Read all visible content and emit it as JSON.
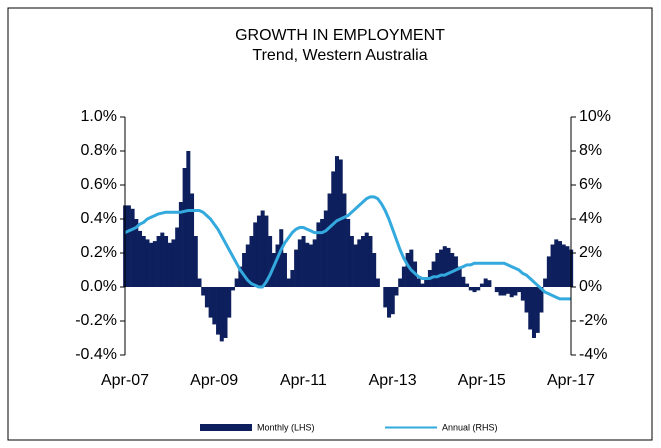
{
  "chart_data": {
    "type": "bar-line",
    "title": "GROWTH IN EMPLOYMENT",
    "subtitle": "Trend, Western Australia",
    "categories": [
      "Apr-07",
      null,
      null,
      null,
      null,
      null,
      null,
      null,
      null,
      null,
      null,
      null,
      null,
      null,
      null,
      null,
      null,
      null,
      null,
      null,
      null,
      null,
      null,
      null,
      "Apr-09",
      null,
      null,
      null,
      null,
      null,
      null,
      null,
      null,
      null,
      null,
      null,
      null,
      null,
      null,
      null,
      null,
      null,
      null,
      null,
      null,
      null,
      null,
      null,
      "Apr-11",
      null,
      null,
      null,
      null,
      null,
      null,
      null,
      null,
      null,
      null,
      null,
      null,
      null,
      null,
      null,
      null,
      null,
      null,
      null,
      null,
      null,
      null,
      null,
      "Apr-13",
      null,
      null,
      null,
      null,
      null,
      null,
      null,
      null,
      null,
      null,
      null,
      null,
      null,
      null,
      null,
      null,
      null,
      null,
      null,
      null,
      null,
      null,
      null,
      "Apr-15",
      null,
      null,
      null,
      null,
      null,
      null,
      null,
      null,
      null,
      null,
      null,
      null,
      null,
      null,
      null,
      null,
      null,
      null,
      null,
      null,
      null,
      null,
      null,
      "Apr-17"
    ],
    "series": [
      {
        "name": "Monthly (LHS)",
        "type": "bar",
        "color": "#0d1f5c",
        "axis": "y",
        "values": [
          0.48,
          0.48,
          0.46,
          0.4,
          0.33,
          0.3,
          0.28,
          0.26,
          0.27,
          0.3,
          0.32,
          0.3,
          0.26,
          0.28,
          0.35,
          0.5,
          0.7,
          0.8,
          0.55,
          0.3,
          0.05,
          -0.05,
          -0.12,
          -0.18,
          -0.22,
          -0.28,
          -0.32,
          -0.3,
          -0.18,
          -0.02,
          0.05,
          0.12,
          0.2,
          0.25,
          0.3,
          0.38,
          0.42,
          0.45,
          0.42,
          0.3,
          0.2,
          0.25,
          0.34,
          0.2,
          0.05,
          0.1,
          0.22,
          0.28,
          0.3,
          0.26,
          0.25,
          0.28,
          0.38,
          0.4,
          0.45,
          0.55,
          0.68,
          0.77,
          0.75,
          0.55,
          0.4,
          0.3,
          0.25,
          0.28,
          0.3,
          0.32,
          0.3,
          0.2,
          0.05,
          0.0,
          -0.12,
          -0.18,
          -0.16,
          -0.05,
          0.05,
          0.12,
          0.2,
          0.22,
          0.15,
          0.05,
          0.02,
          0.05,
          0.1,
          0.15,
          0.2,
          0.22,
          0.24,
          0.23,
          0.2,
          0.18,
          0.12,
          0.06,
          0.02,
          -0.02,
          -0.03,
          -0.02,
          0.02,
          0.05,
          0.04,
          0.0,
          -0.03,
          -0.05,
          -0.05,
          -0.04,
          -0.06,
          -0.05,
          -0.03,
          -0.08,
          -0.15,
          -0.25,
          -0.3,
          -0.27,
          -0.15,
          0.05,
          0.18,
          0.25,
          0.28,
          0.27,
          0.25,
          0.24,
          0.22
        ]
      },
      {
        "name": "Annual (RHS)",
        "type": "line",
        "color": "#33a9de",
        "axis": "y2",
        "values": [
          3.2,
          3.3,
          3.4,
          3.5,
          3.7,
          3.8,
          4.0,
          4.1,
          4.2,
          4.3,
          4.35,
          4.4,
          4.4,
          4.4,
          4.4,
          4.4,
          4.45,
          4.5,
          4.5,
          4.5,
          4.5,
          4.4,
          4.2,
          4.0,
          3.7,
          3.4,
          3.0,
          2.6,
          2.2,
          1.8,
          1.4,
          1.0,
          0.7,
          0.4,
          0.2,
          0.1,
          0.0,
          0.0,
          0.3,
          0.7,
          1.2,
          1.7,
          2.2,
          2.6,
          2.9,
          3.2,
          3.4,
          3.5,
          3.5,
          3.4,
          3.3,
          3.2,
          3.2,
          3.2,
          3.3,
          3.5,
          3.7,
          3.9,
          4.0,
          4.1,
          4.2,
          4.4,
          4.6,
          4.8,
          5.0,
          5.2,
          5.3,
          5.3,
          5.2,
          4.9,
          4.5,
          4.0,
          3.4,
          2.8,
          2.2,
          1.7,
          1.3,
          1.0,
          0.8,
          0.6,
          0.5,
          0.5,
          0.5,
          0.6,
          0.6,
          0.7,
          0.7,
          0.8,
          0.9,
          1.0,
          1.1,
          1.2,
          1.3,
          1.3,
          1.4,
          1.4,
          1.4,
          1.4,
          1.4,
          1.4,
          1.4,
          1.4,
          1.4,
          1.3,
          1.2,
          1.1,
          1.0,
          0.8,
          0.7,
          0.5,
          0.3,
          0.1,
          -0.1,
          -0.3,
          -0.4,
          -0.5,
          -0.6,
          -0.7,
          -0.7,
          -0.7,
          -0.7
        ]
      }
    ],
    "ylim": [
      -0.4,
      1.0
    ],
    "yticks": [
      {
        "value": -0.4,
        "label": "-0.4%"
      },
      {
        "value": -0.2,
        "label": "-0.2%"
      },
      {
        "value": 0.0,
        "label": "0.0%"
      },
      {
        "value": 0.2,
        "label": "0.2%"
      },
      {
        "value": 0.4,
        "label": "0.4%"
      },
      {
        "value": 0.6,
        "label": "0.6%"
      },
      {
        "value": 0.8,
        "label": "0.8%"
      },
      {
        "value": 1.0,
        "label": "1.0%"
      }
    ],
    "y2lim": [
      -4,
      10
    ],
    "y2ticks": [
      {
        "value": -4,
        "label": "-4%"
      },
      {
        "value": -2,
        "label": "-2%"
      },
      {
        "value": 0,
        "label": "0%"
      },
      {
        "value": 2,
        "label": "2%"
      },
      {
        "value": 4,
        "label": "4%"
      },
      {
        "value": 6,
        "label": "6%"
      },
      {
        "value": 8,
        "label": "8%"
      },
      {
        "value": 10,
        "label": "10%"
      }
    ],
    "legend": "bottom"
  }
}
